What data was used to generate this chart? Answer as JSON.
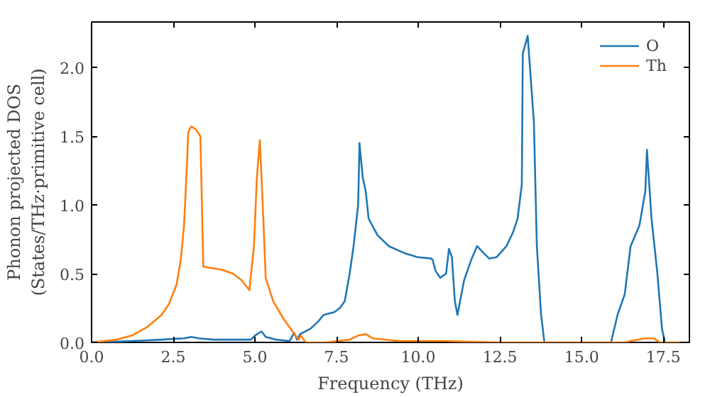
{
  "chart_data": {
    "type": "line",
    "xlabel": "Frequency (THz)",
    "ylabel": "Phonon projected DOS\n(States/THz·primitive cell)",
    "xlim": [
      0,
      18.3
    ],
    "ylim": [
      0,
      2.33
    ],
    "xticks": [
      {
        "value": 0,
        "label": "0.0"
      },
      {
        "value": 2.5,
        "label": "2.5"
      },
      {
        "value": 5,
        "label": "5.0"
      },
      {
        "value": 7.5,
        "label": "7.5"
      },
      {
        "value": 10,
        "label": "10.0"
      },
      {
        "value": 12.5,
        "label": "12.5"
      },
      {
        "value": 15,
        "label": "15.0"
      },
      {
        "value": 17.5,
        "label": "17.5"
      }
    ],
    "yticks": [
      {
        "value": 0,
        "label": "0.0"
      },
      {
        "value": 0.5,
        "label": "0.5"
      },
      {
        "value": 1,
        "label": "1.0"
      },
      {
        "value": 1.5,
        "label": "1.5"
      },
      {
        "value": 2,
        "label": "2.0"
      }
    ],
    "legend": "top right",
    "grid": false,
    "series": [
      {
        "name": "O",
        "color": "#1f77b4",
        "x": [
          0,
          1.23,
          2.14,
          2.83,
          3.05,
          3.28,
          3.74,
          4.88,
          5.0,
          5.2,
          5.33,
          5.65,
          6.06,
          6.2,
          6.29,
          6.38,
          6.7,
          6.93,
          7.1,
          7.43,
          7.6,
          7.75,
          7.9,
          8.02,
          8.16,
          8.2,
          8.3,
          8.39,
          8.48,
          8.75,
          9.1,
          9.57,
          9.98,
          10.4,
          10.44,
          10.53,
          10.67,
          10.85,
          10.94,
          11.03,
          11.12,
          11.2,
          11.4,
          11.62,
          11.8,
          12.0,
          12.17,
          12.4,
          12.7,
          12.9,
          13.04,
          13.17,
          13.2,
          13.35,
          13.54,
          13.63,
          13.76,
          13.86,
          15.9,
          16.1,
          16.32,
          16.5,
          16.77,
          16.95,
          17.0,
          17.14,
          17.32,
          17.46,
          17.55
        ],
        "values": [
          0,
          0.01,
          0.02,
          0.03,
          0.04,
          0.03,
          0.02,
          0.02,
          0.05,
          0.08,
          0.04,
          0.02,
          0.01,
          0.07,
          0.02,
          0.06,
          0.1,
          0.15,
          0.2,
          0.22,
          0.25,
          0.3,
          0.5,
          0.7,
          1.0,
          1.45,
          1.2,
          1.1,
          0.9,
          0.78,
          0.7,
          0.65,
          0.62,
          0.61,
          0.6,
          0.52,
          0.47,
          0.5,
          0.68,
          0.62,
          0.3,
          0.2,
          0.45,
          0.6,
          0.7,
          0.65,
          0.61,
          0.62,
          0.7,
          0.8,
          0.9,
          1.15,
          2.1,
          2.23,
          1.6,
          0.7,
          0.2,
          0,
          0,
          0.2,
          0.35,
          0.7,
          0.85,
          1.1,
          1.4,
          0.9,
          0.5,
          0.1,
          0
        ]
      },
      {
        "name": "Th",
        "color": "#ff7f0e",
        "x": [
          0,
          0.77,
          1.23,
          1.69,
          2.14,
          2.37,
          2.6,
          2.73,
          2.83,
          2.92,
          2.96,
          3.05,
          3.19,
          3.33,
          3.42,
          3.97,
          4.33,
          4.6,
          4.83,
          4.97,
          5.06,
          5.15,
          5.24,
          5.33,
          5.56,
          5.88,
          6.24,
          6.34,
          6.4,
          6.56,
          7.15,
          7.9,
          8.16,
          8.39,
          8.6,
          9.4,
          10.8,
          12.6,
          16.3,
          16.5,
          16.95,
          17.2,
          17.4,
          18.0
        ],
        "values": [
          0,
          0.02,
          0.05,
          0.11,
          0.2,
          0.28,
          0.42,
          0.6,
          0.85,
          1.3,
          1.53,
          1.57,
          1.55,
          1.5,
          0.55,
          0.53,
          0.5,
          0.45,
          0.38,
          0.7,
          1.2,
          1.47,
          1.0,
          0.47,
          0.3,
          0.17,
          0.05,
          0.02,
          0.05,
          0,
          0,
          0.02,
          0.05,
          0.06,
          0.03,
          0.01,
          0.01,
          0,
          0,
          0.01,
          0.03,
          0.03,
          0,
          0
        ]
      }
    ]
  }
}
